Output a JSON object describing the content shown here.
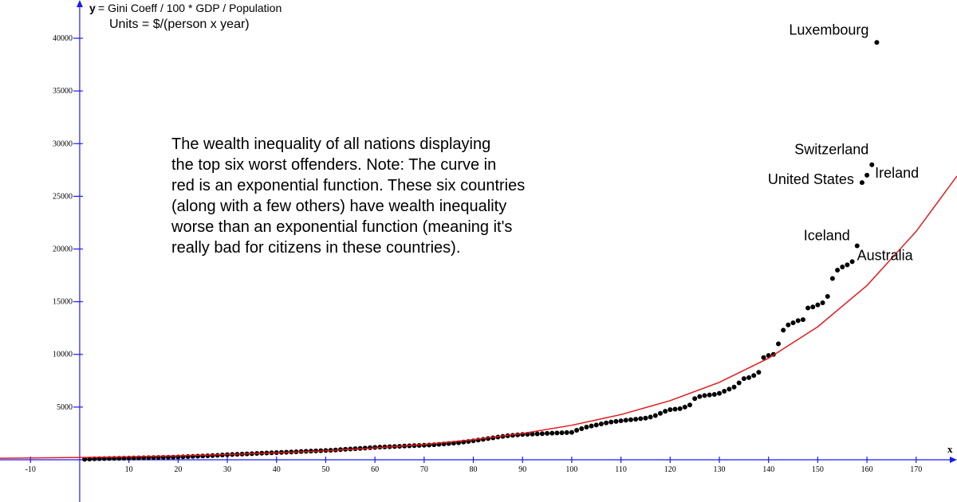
{
  "chart_data": {
    "type": "scatter",
    "y_axis_label": {
      "symbol": "y",
      "text": "= Gini Coeff / 100 * GDP / Population"
    },
    "units": "Units = $/(person x year)",
    "x_axis_label": "x",
    "note": [
      "The wealth inequality of all nations displaying",
      "the top six worst offenders. Note: The curve in",
      "red is an exponential function. These six countries",
      "(along with a few others) have wealth inequality",
      "worse than an exponential function (meaning it's",
      "really bad for citizens in these countries)."
    ],
    "xlim": [
      -16.2,
      178.3
    ],
    "ylim": [
      -4008,
      43630
    ],
    "xticks": [
      -10,
      10,
      20,
      30,
      40,
      50,
      60,
      70,
      80,
      90,
      100,
      110,
      120,
      130,
      140,
      150,
      160,
      170
    ],
    "yticks": [
      5000,
      10000,
      15000,
      20000,
      25000,
      30000,
      35000,
      40000
    ],
    "series": [
      {
        "type": "scatter",
        "color": "#000000",
        "x": [
          1,
          2,
          3,
          4,
          5,
          6,
          7,
          8,
          9,
          10,
          11,
          12,
          13,
          14,
          15,
          16,
          17,
          18,
          19,
          20,
          21,
          22,
          23,
          24,
          25,
          26,
          27,
          28,
          29,
          30,
          31,
          32,
          33,
          34,
          35,
          36,
          37,
          38,
          39,
          40,
          41,
          42,
          43,
          44,
          45,
          46,
          47,
          48,
          49,
          50,
          51,
          52,
          53,
          54,
          55,
          56,
          57,
          58,
          59,
          60,
          61,
          62,
          63,
          64,
          65,
          66,
          67,
          68,
          69,
          70,
          71,
          72,
          73,
          74,
          75,
          76,
          77,
          78,
          79,
          80,
          81,
          82,
          83,
          84,
          85,
          86,
          87,
          88,
          89,
          90,
          91,
          92,
          93,
          94,
          95,
          96,
          97,
          98,
          99,
          100,
          101,
          102,
          103,
          104,
          105,
          106,
          107,
          108,
          109,
          110,
          111,
          112,
          113,
          114,
          115,
          116,
          117,
          118,
          119,
          120,
          121,
          122,
          123,
          124,
          125,
          126,
          127,
          128,
          129,
          130,
          131,
          132,
          133,
          134,
          135,
          136,
          137,
          138,
          139,
          140,
          141,
          142,
          143,
          144,
          145,
          146,
          147,
          148,
          149,
          150,
          151,
          152,
          153,
          154,
          155,
          156,
          157,
          158,
          159,
          160,
          161,
          162
        ],
        "values": [
          50,
          70,
          90,
          100,
          110,
          120,
          130,
          140,
          150,
          160,
          170,
          180,
          190,
          200,
          210,
          220,
          230,
          240,
          250,
          260,
          280,
          300,
          320,
          340,
          360,
          380,
          400,
          420,
          450,
          480,
          500,
          520,
          540,
          560,
          580,
          600,
          620,
          640,
          660,
          680,
          700,
          720,
          740,
          760,
          780,
          800,
          820,
          840,
          860,
          880,
          900,
          930,
          960,
          990,
          1020,
          1050,
          1080,
          1110,
          1140,
          1170,
          1200,
          1220,
          1240,
          1260,
          1280,
          1300,
          1320,
          1340,
          1360,
          1380,
          1400,
          1430,
          1460,
          1500,
          1540,
          1580,
          1620,
          1680,
          1740,
          1800,
          1870,
          1940,
          2010,
          2080,
          2150,
          2220,
          2280,
          2320,
          2360,
          2400,
          2420,
          2440,
          2460,
          2480,
          2500,
          2520,
          2540,
          2560,
          2580,
          2600,
          2800,
          2950,
          3100,
          3200,
          3300,
          3400,
          3500,
          3580,
          3640,
          3700,
          3750,
          3800,
          3850,
          3900,
          3950,
          4050,
          4200,
          4400,
          4600,
          4750,
          4800,
          4850,
          5000,
          5200,
          5800,
          6000,
          6100,
          6150,
          6200,
          6300,
          6500,
          6700,
          6900,
          7300,
          7700,
          7800,
          8000,
          8300,
          9700,
          9900,
          10000,
          11000,
          12300,
          12800,
          13000,
          13200,
          13300,
          14400,
          14500,
          14700,
          14900,
          15500,
          17200,
          18000,
          18300,
          18500,
          18800,
          20300,
          26300,
          27000,
          28000,
          39600
        ]
      },
      {
        "type": "line",
        "color": "#e31a1c",
        "x": [
          -16.2,
          -10,
          0,
          10,
          20,
          30,
          40,
          50,
          60,
          70,
          80,
          90,
          100,
          110,
          120,
          130,
          140,
          150,
          160,
          170,
          178.3
        ],
        "values": [
          143,
          168,
          220,
          288,
          378,
          495,
          648,
          849,
          1111,
          1456,
          1907,
          2498,
          3273,
          4288,
          5614,
          7353,
          9631,
          12619,
          16535,
          21670,
          26930
        ]
      }
    ],
    "annotations": [
      {
        "text": "Luxembourg",
        "x": 162,
        "y": 39600
      },
      {
        "text": "Switzerland",
        "x": 161,
        "y": 28000
      },
      {
        "text": "United States",
        "x": 159,
        "y": 26300
      },
      {
        "text": "Ireland",
        "x": 160,
        "y": 27000
      },
      {
        "text": "Iceland",
        "x": 158,
        "y": 20300
      },
      {
        "text": "Australia",
        "x": 157,
        "y": 18800
      }
    ]
  }
}
